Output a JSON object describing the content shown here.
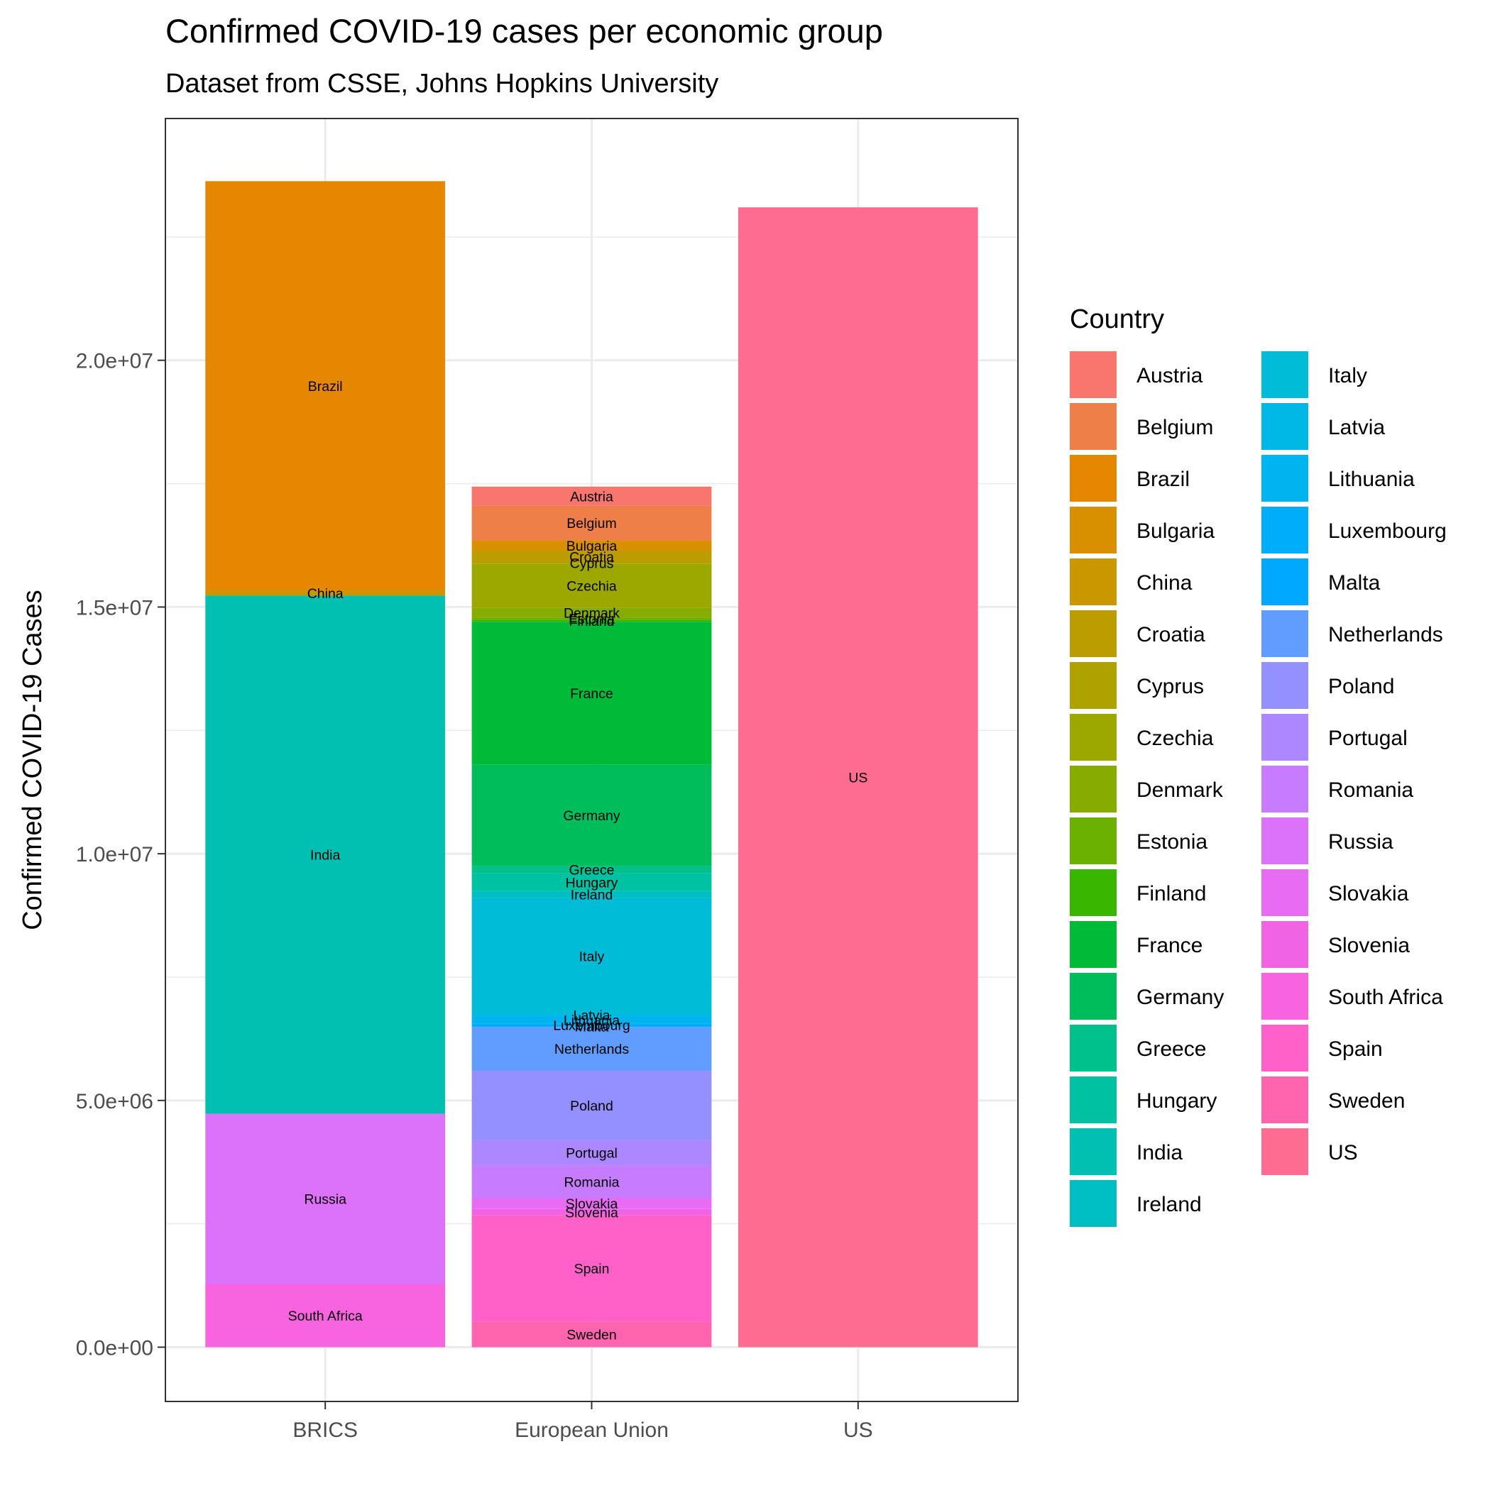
{
  "chart_data": {
    "type": "bar",
    "stacked": true,
    "title": "Confirmed COVID-19 cases per economic group",
    "subtitle": "Dataset from CSSE, Johns Hopkins University",
    "xlabel": "",
    "ylabel": "Confirmed COVID-19 Cases",
    "ylim": [
      -1100000,
      24900000
    ],
    "y_ticks": [
      0,
      5000000,
      10000000,
      15000000,
      20000000
    ],
    "y_tick_labels": [
      "0.0e+00",
      "5.0e+06",
      "1.0e+07",
      "1.5e+07",
      "2.0e+07"
    ],
    "grid": true,
    "legend_title": "Country",
    "legend_position": "right",
    "categories": [
      "BRICS",
      "European Union",
      "US"
    ],
    "series": [
      {
        "name": "Austria",
        "color": "#F8766D",
        "values": [
          0,
          390000,
          0
        ]
      },
      {
        "name": "Belgium",
        "color": "#EF7F49",
        "values": [
          0,
          700000,
          0
        ]
      },
      {
        "name": "Brazil",
        "color": "#E58700",
        "values": [
          8300000,
          0,
          0
        ]
      },
      {
        "name": "Bulgaria",
        "color": "#D89000",
        "values": [
          0,
          215000,
          0
        ]
      },
      {
        "name": "China",
        "color": "#C99800",
        "values": [
          100000,
          0,
          0
        ]
      },
      {
        "name": "Croatia",
        "color": "#BB9D00",
        "values": [
          0,
          230000,
          0
        ]
      },
      {
        "name": "Cyprus",
        "color": "#ADA200",
        "values": [
          0,
          33000,
          0
        ]
      },
      {
        "name": "Czechia",
        "color": "#9CA700",
        "values": [
          0,
          890000,
          0
        ]
      },
      {
        "name": "Denmark",
        "color": "#86AC00",
        "values": [
          0,
          200000,
          0
        ]
      },
      {
        "name": "Estonia",
        "color": "#6BB100",
        "values": [
          0,
          40000,
          0
        ]
      },
      {
        "name": "Finland",
        "color": "#39B600",
        "values": [
          0,
          40000,
          0
        ]
      },
      {
        "name": "France",
        "color": "#00BA38",
        "values": [
          0,
          2900000,
          0
        ]
      },
      {
        "name": "Germany",
        "color": "#00BD5C",
        "values": [
          0,
          2050000,
          0
        ]
      },
      {
        "name": "Greece",
        "color": "#00C08B",
        "values": [
          0,
          150000,
          0
        ]
      },
      {
        "name": "Hungary",
        "color": "#00C1A1",
        "values": [
          0,
          360000,
          0
        ]
      },
      {
        "name": "India",
        "color": "#00C0B1",
        "values": [
          10500000,
          0,
          0
        ]
      },
      {
        "name": "Ireland",
        "color": "#00BFC4",
        "values": [
          0,
          140000,
          0
        ]
      },
      {
        "name": "Italy",
        "color": "#00BCD6",
        "values": [
          0,
          2350000,
          0
        ]
      },
      {
        "name": "Latvia",
        "color": "#00B8E5",
        "values": [
          0,
          50000,
          0
        ]
      },
      {
        "name": "Lithuania",
        "color": "#00B4EF",
        "values": [
          0,
          150000,
          0
        ]
      },
      {
        "name": "Luxembourg",
        "color": "#00ADFA",
        "values": [
          0,
          45000,
          0
        ]
      },
      {
        "name": "Malta",
        "color": "#00A9FF",
        "values": [
          0,
          17000,
          0
        ]
      },
      {
        "name": "Netherlands",
        "color": "#619CFF",
        "values": [
          0,
          890000,
          0
        ]
      },
      {
        "name": "Poland",
        "color": "#9590FF",
        "values": [
          0,
          1400000,
          0
        ]
      },
      {
        "name": "Portugal",
        "color": "#AD87FF",
        "values": [
          0,
          520000,
          0
        ]
      },
      {
        "name": "Romania",
        "color": "#C77CFF",
        "values": [
          0,
          660000,
          0
        ]
      },
      {
        "name": "Russia",
        "color": "#DC71FA",
        "values": [
          3450000,
          0,
          0
        ]
      },
      {
        "name": "Slovakia",
        "color": "#E76BF3",
        "values": [
          0,
          220000,
          0
        ]
      },
      {
        "name": "Slovenia",
        "color": "#F064E4",
        "values": [
          0,
          130000,
          0
        ]
      },
      {
        "name": "South Africa",
        "color": "#F863DF",
        "values": [
          1280000,
          0,
          0
        ]
      },
      {
        "name": "Spain",
        "color": "#FF61C9",
        "values": [
          0,
          2150000,
          0
        ]
      },
      {
        "name": "Sweden",
        "color": "#FF65AE",
        "values": [
          0,
          520000,
          0
        ]
      },
      {
        "name": "US",
        "color": "#FF6C91",
        "values": [
          0,
          0,
          23100000
        ]
      }
    ],
    "bar_labels": [
      {
        "category": "BRICS",
        "stack": [
          "South Africa",
          "Russia",
          "India",
          "China",
          "Brazil"
        ]
      },
      {
        "category": "European Union",
        "stack": [
          "Sweden",
          "Spain",
          "Slovenia",
          "Slovakia",
          "Romania",
          "Portugal",
          "Poland",
          "Netherlands",
          "Malta",
          "Luxembourg",
          "Lithuania",
          "Latvia",
          "Italy",
          "Ireland",
          "Hungary",
          "Greece",
          "Germany",
          "France",
          "Finland",
          "Estonia",
          "Denmark",
          "Czechia",
          "Cyprus",
          "Croatia",
          "Bulgaria",
          "Belgium",
          "Austria"
        ]
      },
      {
        "category": "US",
        "stack": [
          "US"
        ]
      }
    ]
  }
}
